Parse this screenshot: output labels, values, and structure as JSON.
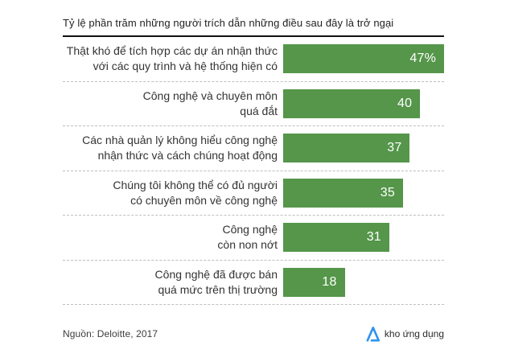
{
  "title": "Tỷ lệ phần trăm những người trích dẫn những điều sau đây là trở ngại",
  "chart_data": {
    "type": "bar",
    "orientation": "horizontal",
    "title": "Tỷ lệ phần trăm những người trích dẫn những điều sau đây là trở ngại",
    "categories": [
      "Thật khó để tích hợp các dự án nhận thức với các quy trình và hệ thống hiện có",
      "Công nghệ và chuyên môn quá đắt",
      "Các nhà quản lý không hiểu công nghệ nhận thức và cách chúng hoạt động",
      "Chúng tôi không thể có đủ người có chuyên môn về công nghệ",
      "Công nghệ còn non nớt",
      "Công nghệ đã được bán quá mức trên thị trường"
    ],
    "category_lines": [
      [
        "Thật khó để tích hợp các dự án nhận thức",
        "với các quy trình và hệ thống hiện có"
      ],
      [
        "Công nghệ và chuyên môn",
        "quá đắt"
      ],
      [
        "Các nhà quản lý không hiểu công nghệ",
        "nhận thức và cách chúng hoạt động"
      ],
      [
        "Chúng tôi không thể có đủ người",
        "có chuyên môn về công nghệ"
      ],
      [
        "Công nghệ",
        "còn non nớt"
      ],
      [
        "Công nghệ đã được bán",
        "quá mức trên thị trường"
      ]
    ],
    "values": [
      47,
      40,
      37,
      35,
      31,
      18
    ],
    "value_labels": [
      "47%",
      "40",
      "37",
      "35",
      "31",
      "18"
    ],
    "value_axis_max": 47,
    "xlabel": "",
    "ylabel": "",
    "grid": false,
    "legend": false,
    "bar_color": "#55964a",
    "source": "Nguồn: Deloitte, 2017"
  },
  "footer": {
    "source": "Nguồn: Deloitte, 2017",
    "logo_text": "kho ứng dụng"
  },
  "colors": {
    "bar_green": "#55964a",
    "value_text": "#ffffff",
    "title_rule": "#111111",
    "separator": "#bfbfbf",
    "logo_blue": "#2e93f0",
    "background": "#ffffff"
  }
}
